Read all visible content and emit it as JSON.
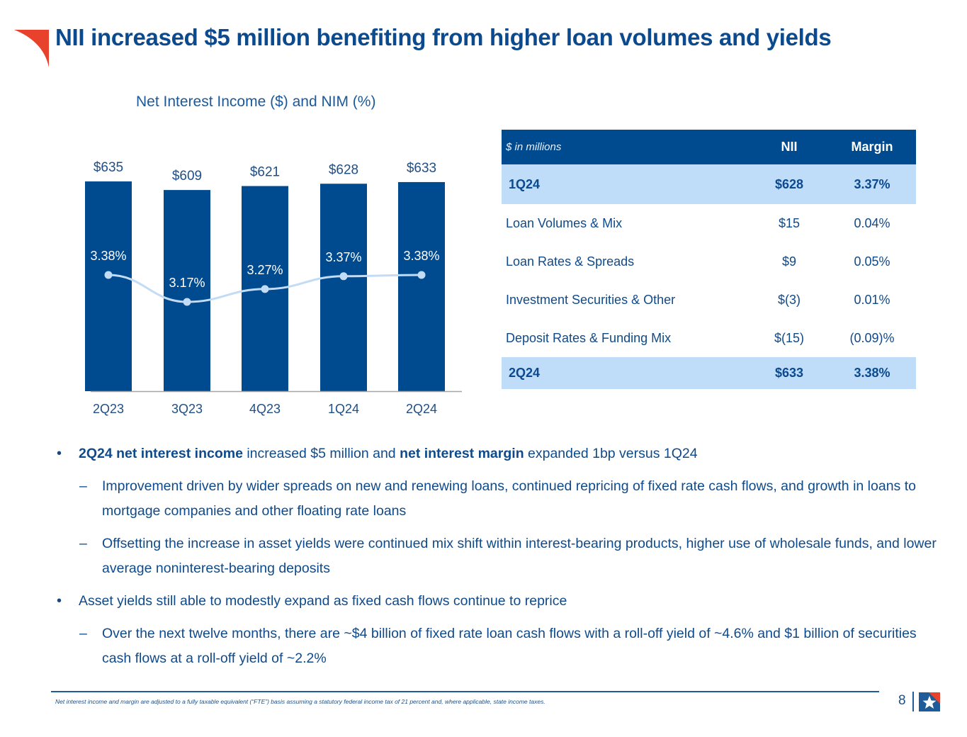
{
  "slide": {
    "title": "NII increased $5 million benefiting from higher loan volumes and yields",
    "page_number": "8",
    "footnote": "Net interest income and margin are adjusted to a fully taxable equivalent (“FTE”) basis assuming a statutory federal income tax of 21 percent and, where applicable, state income taxes.",
    "brand_colors": {
      "navy": "#004a8f",
      "light_blue": "#bfdcf8",
      "red": "#e8412c",
      "line_blue": "#c3dcf5"
    },
    "icons": {
      "corner_logo": "red-swoosh-icon",
      "footer_logo": "star-flag-logo-icon"
    }
  },
  "chart_data": {
    "type": "bar",
    "title": "Net Interest Income ($) and NIM (%)",
    "xlabel": "",
    "ylabel": "",
    "categories": [
      "2Q23",
      "3Q23",
      "4Q23",
      "1Q24",
      "2Q24"
    ],
    "grid": false,
    "legend": "none",
    "series": [
      {
        "name": "Net Interest Income ($M)",
        "type": "bar",
        "values": [
          635,
          609,
          621,
          628,
          633
        ],
        "labels": [
          "$635",
          "$609",
          "$621",
          "$628",
          "$633"
        ],
        "color": "#004a8f"
      },
      {
        "name": "NIM (%)",
        "type": "line",
        "values": [
          3.38,
          3.17,
          3.27,
          3.37,
          3.38
        ],
        "labels": [
          "3.38%",
          "3.17%",
          "3.27%",
          "3.37%",
          "3.38%"
        ],
        "color": "#c3dcf5"
      }
    ],
    "ylim": [
      0,
      635
    ]
  },
  "table": {
    "header": {
      "label": "$ in millions",
      "nii": "NII",
      "margin": "Margin"
    },
    "rows": [
      {
        "label": "1Q24",
        "nii": "$628",
        "margin": "3.37%",
        "highlight": true
      },
      {
        "label": "Loan Volumes & Mix",
        "nii": "$15",
        "margin": "0.04%",
        "highlight": false
      },
      {
        "label": "Loan Rates & Spreads",
        "nii": "$9",
        "margin": "0.05%",
        "highlight": false
      },
      {
        "label": "Investment Securities & Other",
        "nii": "$(3)",
        "margin": "0.01%",
        "highlight": false
      },
      {
        "label": "Deposit Rates & Funding Mix",
        "nii": "$(15)",
        "margin": "(0.09)%",
        "highlight": false
      },
      {
        "label": "2Q24",
        "nii": "$633",
        "margin": "3.38%",
        "highlight": true
      }
    ]
  },
  "bullets": {
    "b1": {
      "mark": "•",
      "bold1": "2Q24 net interest income",
      "text1": " increased $5 million and ",
      "bold2": "net interest margin",
      "text2": " expanded 1bp versus 1Q24"
    },
    "b1_sub1": {
      "mark": "–",
      "text": "Improvement driven by wider spreads on new and renewing loans, continued repricing of fixed rate cash flows, and growth in loans to mortgage companies and other floating rate loans"
    },
    "b1_sub2": {
      "mark": "–",
      "text": "Offsetting the increase in asset yields were continued mix shift within interest-bearing products, higher use of wholesale funds, and lower average noninterest-bearing deposits"
    },
    "b2": {
      "mark": "•",
      "text": "Asset yields still able to modestly expand as fixed cash flows continue to reprice"
    },
    "b2_sub1": {
      "mark": "–",
      "text": "Over the next twelve months, there are ~$4 billion of fixed rate loan cash flows with a roll-off yield of ~4.6% and $1 billion of securities cash flows at a roll-off yield of ~2.2%"
    }
  }
}
